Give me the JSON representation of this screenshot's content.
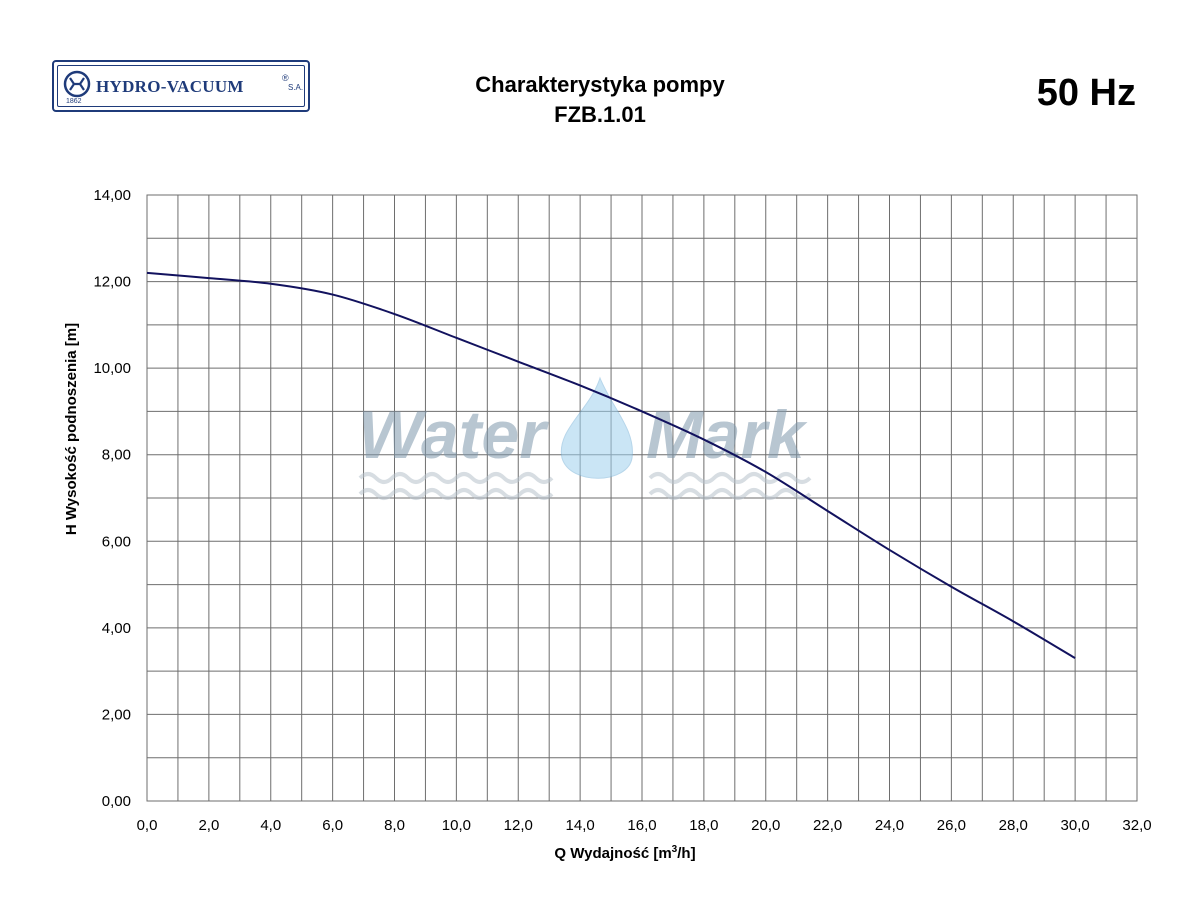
{
  "logo": {
    "name": "HYDRO-VACUUM",
    "reg": "®",
    "suffix": "S.A.",
    "year": "1862"
  },
  "header": {
    "title_line1": "Charakterystyka pompy",
    "title_line2": "FZB.1.01",
    "frequency": "50 Hz"
  },
  "watermark": {
    "left": "Water",
    "right": "Mark"
  },
  "chart_data": {
    "type": "line",
    "title": "Charakterystyka pompy FZB.1.01",
    "xlabel": "Q Wydajność [m3/h]",
    "ylabel": "H  Wysokość podnoszenia [m]",
    "xlim": [
      0,
      32
    ],
    "ylim": [
      0,
      14
    ],
    "grid": true,
    "x_ticks": [
      "0,0",
      "2,0",
      "4,0",
      "6,0",
      "8,0",
      "10,0",
      "12,0",
      "14,0",
      "16,0",
      "18,0",
      "20,0",
      "22,0",
      "24,0",
      "26,0",
      "28,0",
      "30,0",
      "32,0"
    ],
    "y_ticks": [
      "0,00",
      "2,00",
      "4,00",
      "6,00",
      "8,00",
      "10,00",
      "12,00",
      "14,00"
    ],
    "x": [
      0,
      2,
      4,
      6,
      8,
      10,
      12,
      14,
      16,
      18,
      20,
      22,
      24,
      26,
      28,
      30
    ],
    "y": [
      12.2,
      12.08,
      11.95,
      11.7,
      11.25,
      10.7,
      10.15,
      9.6,
      9.0,
      8.35,
      7.6,
      6.7,
      5.8,
      4.95,
      4.15,
      3.3
    ],
    "colors": {
      "line": "#12125e",
      "grid": "#6e6e6e"
    }
  }
}
